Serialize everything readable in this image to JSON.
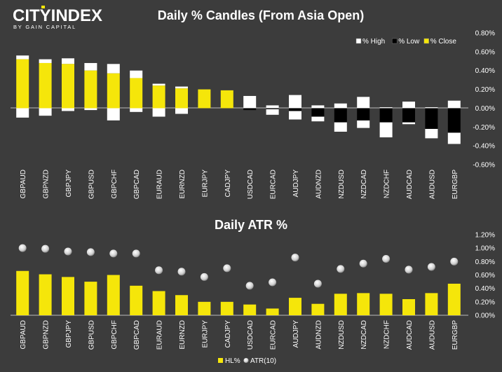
{
  "brand": {
    "name_part1": "CITY",
    "name_part2": "INDEX",
    "tagline": "BY GAIN CAPITAL",
    "colors": {
      "primary": "#ffffff",
      "accent": "#f5e60a"
    }
  },
  "chart_data": [
    {
      "type": "bar",
      "title": "Daily % Candles (From Asia Open)",
      "categories": [
        "GBPAUD",
        "GBPNZD",
        "GBPJPY",
        "GBPUSD",
        "GBPCHF",
        "GBPCAD",
        "EURAUD",
        "EURNZD",
        "EURJPY",
        "CADJPY",
        "USDCAD",
        "EURCAD",
        "AUDJPY",
        "AUDNZD",
        "NZDUSD",
        "NZDCAD",
        "NZDCHF",
        "AUDCAD",
        "AUDUSD",
        "EURGBP"
      ],
      "series": [
        {
          "name": "% High",
          "color": "#ffffff",
          "values": [
            0.56,
            0.52,
            0.53,
            0.48,
            0.47,
            0.4,
            0.26,
            0.23,
            0.2,
            0.19,
            0.13,
            0.03,
            0.14,
            0.03,
            0.05,
            0.12,
            0.01,
            0.07,
            0.01,
            0.08
          ]
        },
        {
          "name": "% Low",
          "color": "#000000",
          "values": [
            -0.1,
            -0.08,
            -0.03,
            -0.02,
            -0.13,
            -0.04,
            -0.09,
            -0.06,
            0.0,
            0.0,
            -0.02,
            -0.07,
            -0.12,
            -0.14,
            -0.25,
            -0.21,
            -0.31,
            -0.17,
            -0.32,
            -0.38
          ]
        },
        {
          "name": "% Close",
          "color": "#f5e60a",
          "values": [
            0.52,
            0.48,
            0.47,
            0.4,
            0.37,
            0.32,
            0.24,
            0.21,
            0.2,
            0.19,
            -0.02,
            -0.01,
            -0.03,
            -0.09,
            -0.15,
            -0.13,
            -0.15,
            -0.15,
            -0.22,
            -0.26
          ]
        }
      ],
      "ylim": [
        -0.6,
        0.8
      ],
      "yticks": [
        "0.80%",
        "0.60%",
        "0.40%",
        "0.20%",
        "0.00%",
        "-0.20%",
        "-0.40%",
        "-0.60%"
      ],
      "legend_position": "top-right",
      "grid": false
    },
    {
      "type": "bar",
      "title": "Daily ATR %",
      "categories": [
        "GBPAUD",
        "GBPNZD",
        "GBPJPY",
        "GBPUSD",
        "GBPCHF",
        "GBPCAD",
        "EURAUD",
        "EURNZD",
        "EURJPY",
        "CADJPY",
        "USDCAD",
        "EURCAD",
        "AUDJPY",
        "AUDNZD",
        "NZDUSD",
        "NZDCAD",
        "NZDCHF",
        "AUDCAD",
        "AUDUSD",
        "EURGBP"
      ],
      "series": [
        {
          "name": "HL%",
          "type": "bar",
          "color": "#f5e60a",
          "values": [
            0.66,
            0.61,
            0.57,
            0.5,
            0.6,
            0.44,
            0.36,
            0.3,
            0.2,
            0.2,
            0.16,
            0.1,
            0.26,
            0.17,
            0.32,
            0.33,
            0.32,
            0.24,
            0.33,
            0.47
          ]
        },
        {
          "name": "ATR(10)",
          "type": "scatter",
          "color": "#dddddd",
          "values": [
            1.0,
            0.99,
            0.95,
            0.94,
            0.92,
            0.92,
            0.67,
            0.65,
            0.57,
            0.7,
            0.44,
            0.49,
            0.86,
            0.47,
            0.69,
            0.77,
            0.84,
            0.68,
            0.72,
            0.8
          ]
        }
      ],
      "ylim": [
        0.0,
        1.2
      ],
      "yticks": [
        "1.20%",
        "1.00%",
        "0.80%",
        "0.60%",
        "0.40%",
        "0.20%",
        "0.00%"
      ],
      "legend_position": "bottom-center",
      "grid": false
    }
  ]
}
